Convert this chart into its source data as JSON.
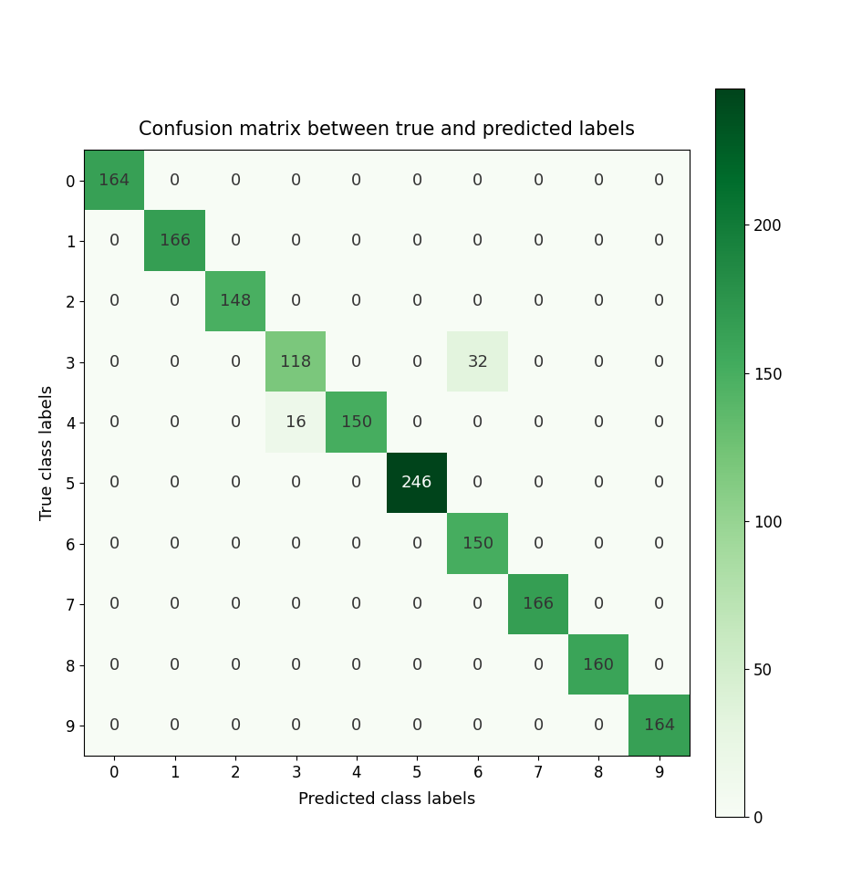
{
  "matrix": [
    [
      164,
      0,
      0,
      0,
      0,
      0,
      0,
      0,
      0,
      0
    ],
    [
      0,
      166,
      0,
      0,
      0,
      0,
      0,
      0,
      0,
      0
    ],
    [
      0,
      0,
      148,
      0,
      0,
      0,
      0,
      0,
      0,
      0
    ],
    [
      0,
      0,
      0,
      118,
      0,
      0,
      32,
      0,
      0,
      0
    ],
    [
      0,
      0,
      0,
      16,
      150,
      0,
      0,
      0,
      0,
      0
    ],
    [
      0,
      0,
      0,
      0,
      0,
      246,
      0,
      0,
      0,
      0
    ],
    [
      0,
      0,
      0,
      0,
      0,
      0,
      150,
      0,
      0,
      0
    ],
    [
      0,
      0,
      0,
      0,
      0,
      0,
      0,
      166,
      0,
      0
    ],
    [
      0,
      0,
      0,
      0,
      0,
      0,
      0,
      0,
      160,
      0
    ],
    [
      0,
      0,
      0,
      0,
      0,
      0,
      0,
      0,
      0,
      164
    ]
  ],
  "title": "Confusion matrix between true and predicted labels",
  "xlabel": "Predicted class labels",
  "ylabel": "True class labels",
  "tick_labels": [
    0,
    1,
    2,
    3,
    4,
    5,
    6,
    7,
    8,
    9
  ],
  "cmap": "Greens",
  "vmin": 0,
  "vmax": 246,
  "colorbar_ticks": [
    0,
    50,
    100,
    150,
    200
  ],
  "title_fontsize": 15,
  "label_fontsize": 13,
  "tick_fontsize": 12,
  "cell_fontsize": 13,
  "figwidth": 9.22,
  "figheight": 9.73,
  "dpi": 100
}
